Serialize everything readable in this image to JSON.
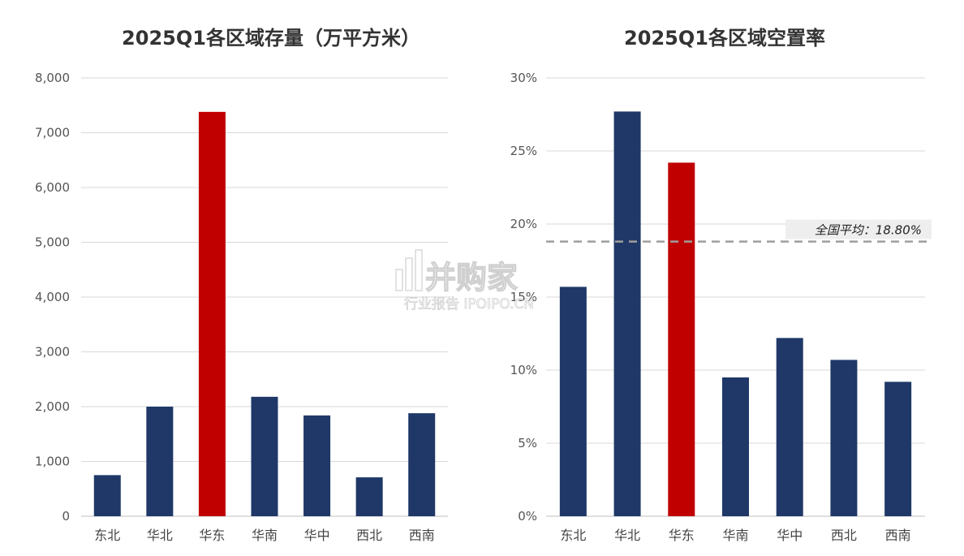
{
  "colors": {
    "primary": "#1f3868",
    "highlight": "#c00000",
    "average_line": "#9e9e9e"
  },
  "watermark": {
    "brand": "并购家",
    "sub": "行业报告 IPOIPO.CN"
  },
  "chart_data": [
    {
      "type": "bar",
      "title": "2025Q1各区域存量（万平方米）",
      "categories": [
        "东北",
        "华北",
        "华东",
        "华南",
        "华中",
        "西北",
        "西南"
      ],
      "values": [
        750,
        2000,
        7380,
        2180,
        1840,
        710,
        1880
      ],
      "highlight_index": 2,
      "ylim": [
        0,
        8000
      ],
      "yticks": [
        0,
        1000,
        2000,
        3000,
        4000,
        5000,
        6000,
        7000,
        8000
      ],
      "ytick_labels": [
        "0",
        "1,000",
        "2,000",
        "3,000",
        "4,000",
        "5,000",
        "6,000",
        "7,000",
        "8,000"
      ],
      "grid": true,
      "legend": "none"
    },
    {
      "type": "bar",
      "title": "2025Q1各区域空置率",
      "categories": [
        "东北",
        "华北",
        "华东",
        "华南",
        "华中",
        "西北",
        "西南"
      ],
      "values": [
        15.7,
        27.7,
        24.2,
        9.5,
        12.2,
        10.7,
        9.2
      ],
      "highlight_index": 2,
      "ylim": [
        0,
        30
      ],
      "yticks": [
        0,
        5,
        10,
        15,
        20,
        25,
        30
      ],
      "ytick_labels": [
        "0%",
        "5%",
        "10%",
        "15%",
        "20%",
        "25%",
        "30%"
      ],
      "grid": true,
      "legend": "none",
      "reference_line": {
        "value": 18.8,
        "label": "全国平均：18.80%"
      }
    }
  ]
}
